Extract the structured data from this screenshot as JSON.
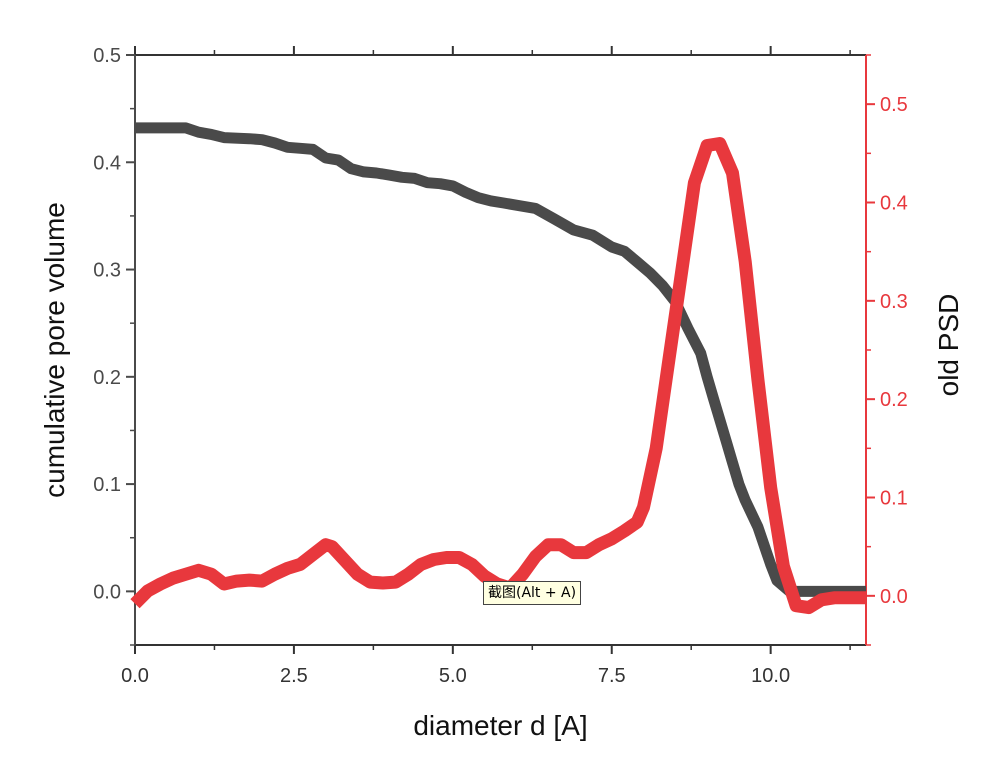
{
  "chart_data": {
    "type": "line",
    "xlabel": "diameter d [A]",
    "ylabel_left": "cumulative pore volume",
    "ylabel_right": "old PSD",
    "xlim": [
      0,
      11.5
    ],
    "ylim_left": [
      -0.05,
      0.5
    ],
    "ylim_right": [
      -0.05,
      0.55
    ],
    "x_ticks": [
      "0.0",
      "2.5",
      "5.0",
      "7.5",
      "10.0"
    ],
    "x_tick_values": [
      0,
      2.5,
      5,
      7.5,
      10
    ],
    "y_left_ticks": [
      "0.0",
      "0.1",
      "0.2",
      "0.3",
      "0.4",
      "0.5"
    ],
    "y_left_tick_values": [
      0,
      0.1,
      0.2,
      0.3,
      0.4,
      0.5
    ],
    "y_right_ticks": [
      "0.0",
      "0.1",
      "0.2",
      "0.3",
      "0.4",
      "0.5"
    ],
    "y_right_tick_values": [
      0,
      0.1,
      0.2,
      0.3,
      0.4,
      0.5
    ],
    "grid": false,
    "colors": {
      "left_axis": "#4a4a4a",
      "right_axis": "#e8383d",
      "cumulative": "#4a4a4a",
      "psd": "#e8383d"
    },
    "series": [
      {
        "axis": "left",
        "x": [
          0,
          0.8,
          1.0,
          1.2,
          1.4,
          1.8,
          2.0,
          2.2,
          2.4,
          2.6,
          2.8,
          3.0,
          3.2,
          3.4,
          3.6,
          3.8,
          4.0,
          4.2,
          4.4,
          4.6,
          4.8,
          5.0,
          5.2,
          5.4,
          5.6,
          5.8,
          6.0,
          6.3,
          6.6,
          6.9,
          7.2,
          7.5,
          7.7,
          7.9,
          8.1,
          8.3,
          8.5,
          8.7,
          8.9,
          9.0,
          9.1,
          9.2,
          9.3,
          9.4,
          9.5,
          9.6,
          9.8,
          10.0,
          10.1,
          10.3,
          10.5,
          11.5
        ],
        "y": [
          0.432,
          0.432,
          0.428,
          0.426,
          0.423,
          0.422,
          0.421,
          0.418,
          0.414,
          0.413,
          0.412,
          0.404,
          0.402,
          0.394,
          0.391,
          0.39,
          0.388,
          0.386,
          0.385,
          0.381,
          0.38,
          0.378,
          0.372,
          0.367,
          0.364,
          0.362,
          0.36,
          0.357,
          0.347,
          0.337,
          0.332,
          0.321,
          0.317,
          0.307,
          0.297,
          0.285,
          0.27,
          0.245,
          0.222,
          0.2,
          0.18,
          0.16,
          0.14,
          0.12,
          0.1,
          0.085,
          0.06,
          0.025,
          0.01,
          0.0,
          0.0,
          0.0
        ]
      },
      {
        "axis": "right",
        "x": [
          0,
          0.2,
          0.4,
          0.6,
          0.8,
          1.0,
          1.2,
          1.4,
          1.6,
          1.8,
          2.0,
          2.2,
          2.4,
          2.6,
          2.8,
          3.0,
          3.1,
          3.3,
          3.5,
          3.7,
          3.9,
          4.1,
          4.3,
          4.5,
          4.7,
          4.9,
          5.1,
          5.3,
          5.5,
          5.7,
          5.9,
          6.1,
          6.3,
          6.5,
          6.7,
          6.9,
          7.1,
          7.3,
          7.5,
          7.7,
          7.9,
          8.0,
          8.2,
          8.4,
          8.6,
          8.8,
          9.0,
          9.2,
          9.4,
          9.6,
          9.8,
          10.0,
          10.2,
          10.4,
          10.6,
          10.8,
          11.0,
          11.5
        ],
        "y": [
          -0.008,
          0.005,
          0.012,
          0.018,
          0.022,
          0.026,
          0.022,
          0.012,
          0.015,
          0.016,
          0.015,
          0.022,
          0.028,
          0.032,
          0.042,
          0.052,
          0.05,
          0.036,
          0.022,
          0.014,
          0.013,
          0.014,
          0.022,
          0.032,
          0.037,
          0.039,
          0.039,
          0.032,
          0.02,
          0.012,
          0.008,
          0.022,
          0.04,
          0.052,
          0.052,
          0.044,
          0.044,
          0.052,
          0.058,
          0.066,
          0.075,
          0.09,
          0.15,
          0.24,
          0.33,
          0.42,
          0.458,
          0.46,
          0.43,
          0.34,
          0.22,
          0.11,
          0.03,
          -0.01,
          -0.012,
          -0.004,
          -0.002,
          -0.002
        ]
      }
    ]
  },
  "tooltip": {
    "text": "截图(Alt + A)"
  }
}
